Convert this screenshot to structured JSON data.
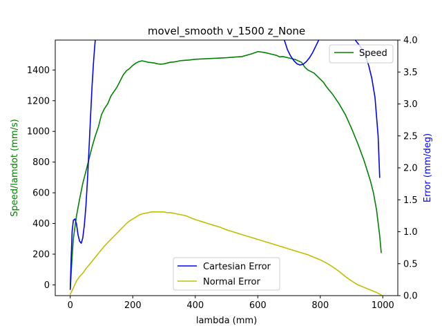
{
  "chart_data": {
    "type": "line",
    "title": "movel_smooth v_1500 z_None",
    "xlabel": "lambda (mm)",
    "ylabel_left": "Speed/lamdot (mm/s)",
    "ylabel_right": "Error (mm/deg)",
    "xlim": [
      -48,
      1048
    ],
    "ylim_left": [
      -70,
      1595
    ],
    "ylim_right": [
      0,
      4.0
    ],
    "x_ticks": [
      0,
      200,
      400,
      600,
      800,
      1000
    ],
    "y_left_ticks": [
      0,
      200,
      400,
      600,
      800,
      1000,
      1200,
      1400
    ],
    "y_right_ticks": [
      0.0,
      0.5,
      1.0,
      1.5,
      2.0,
      2.5,
      3.0,
      3.5,
      4.0
    ],
    "grid": false,
    "legends": [
      {
        "placement": "upper-right",
        "entries": [
          "Speed"
        ]
      },
      {
        "placement": "lower-center",
        "entries": [
          "Cartesian Error",
          "Normal Error"
        ]
      }
    ],
    "colors": {
      "speed": "#008000",
      "cartesian": "#0000ff",
      "normal": "#bfbf00",
      "left_axis_label": "#008000",
      "right_axis_label": "#0000ff"
    },
    "series": [
      {
        "name": "Speed",
        "axis": "left",
        "color": "#008000",
        "points": [
          [
            0,
            -30
          ],
          [
            5,
            150
          ],
          [
            10,
            300
          ],
          [
            20,
            450
          ],
          [
            30,
            560
          ],
          [
            40,
            660
          ],
          [
            50,
            740
          ],
          [
            60,
            820
          ],
          [
            70,
            900
          ],
          [
            80,
            970
          ],
          [
            90,
            1030
          ],
          [
            100,
            1110
          ],
          [
            110,
            1150
          ],
          [
            120,
            1180
          ],
          [
            130,
            1230
          ],
          [
            140,
            1260
          ],
          [
            150,
            1290
          ],
          [
            160,
            1330
          ],
          [
            170,
            1370
          ],
          [
            180,
            1395
          ],
          [
            190,
            1410
          ],
          [
            200,
            1430
          ],
          [
            210,
            1445
          ],
          [
            220,
            1455
          ],
          [
            230,
            1460
          ],
          [
            240,
            1455
          ],
          [
            250,
            1450
          ],
          [
            260,
            1448
          ],
          [
            270,
            1445
          ],
          [
            280,
            1440
          ],
          [
            290,
            1438
          ],
          [
            300,
            1440
          ],
          [
            310,
            1445
          ],
          [
            320,
            1450
          ],
          [
            330,
            1452
          ],
          [
            340,
            1455
          ],
          [
            350,
            1460
          ],
          [
            360,
            1462
          ],
          [
            380,
            1465
          ],
          [
            400,
            1470
          ],
          [
            450,
            1475
          ],
          [
            500,
            1480
          ],
          [
            550,
            1488
          ],
          [
            580,
            1505
          ],
          [
            600,
            1520
          ],
          [
            620,
            1515
          ],
          [
            640,
            1505
          ],
          [
            660,
            1495
          ],
          [
            670,
            1485
          ],
          [
            680,
            1488
          ],
          [
            700,
            1478
          ],
          [
            720,
            1468
          ],
          [
            740,
            1450
          ],
          [
            750,
            1420
          ],
          [
            760,
            1400
          ],
          [
            780,
            1380
          ],
          [
            800,
            1340
          ],
          [
            810,
            1320
          ],
          [
            820,
            1290
          ],
          [
            840,
            1240
          ],
          [
            860,
            1180
          ],
          [
            880,
            1110
          ],
          [
            900,
            1020
          ],
          [
            920,
            920
          ],
          [
            940,
            810
          ],
          [
            960,
            680
          ],
          [
            970,
            600
          ],
          [
            980,
            490
          ],
          [
            990,
            320
          ],
          [
            995,
            210
          ]
        ]
      },
      {
        "name": "Cartesian Error",
        "axis": "right",
        "color": "#0000ff",
        "points": [
          [
            0,
            0.1
          ],
          [
            3,
            0.6
          ],
          [
            6,
            1.0
          ],
          [
            10,
            1.18
          ],
          [
            15,
            1.2
          ],
          [
            20,
            1.12
          ],
          [
            25,
            0.95
          ],
          [
            30,
            0.85
          ],
          [
            35,
            0.82
          ],
          [
            40,
            0.9
          ],
          [
            45,
            1.1
          ],
          [
            50,
            1.4
          ],
          [
            55,
            1.8
          ],
          [
            60,
            2.3
          ],
          [
            65,
            2.8
          ],
          [
            70,
            3.3
          ],
          [
            75,
            3.7
          ],
          [
            80,
            4.0
          ],
          [
            83,
            4.3
          ],
          [
            680,
            4.3
          ],
          [
            685,
            4.0
          ],
          [
            695,
            3.85
          ],
          [
            705,
            3.75
          ],
          [
            715,
            3.68
          ],
          [
            725,
            3.63
          ],
          [
            735,
            3.61
          ],
          [
            745,
            3.62
          ],
          [
            755,
            3.66
          ],
          [
            765,
            3.72
          ],
          [
            775,
            3.8
          ],
          [
            785,
            3.9
          ],
          [
            795,
            4.0
          ],
          [
            800,
            4.2
          ],
          [
            900,
            4.2
          ],
          [
            905,
            4.05
          ],
          [
            915,
            3.98
          ],
          [
            925,
            3.92
          ],
          [
            935,
            3.85
          ],
          [
            945,
            3.75
          ],
          [
            955,
            3.6
          ],
          [
            965,
            3.4
          ],
          [
            975,
            3.1
          ],
          [
            985,
            2.5
          ],
          [
            990,
            1.85
          ]
        ]
      },
      {
        "name": "Normal Error",
        "axis": "right",
        "color": "#bfbf00",
        "points": [
          [
            0,
            0.02
          ],
          [
            10,
            0.12
          ],
          [
            20,
            0.23
          ],
          [
            30,
            0.3
          ],
          [
            40,
            0.35
          ],
          [
            50,
            0.42
          ],
          [
            60,
            0.48
          ],
          [
            70,
            0.54
          ],
          [
            80,
            0.6
          ],
          [
            90,
            0.66
          ],
          [
            100,
            0.72
          ],
          [
            110,
            0.78
          ],
          [
            120,
            0.83
          ],
          [
            130,
            0.88
          ],
          [
            140,
            0.93
          ],
          [
            150,
            0.98
          ],
          [
            160,
            1.03
          ],
          [
            170,
            1.08
          ],
          [
            180,
            1.13
          ],
          [
            190,
            1.17
          ],
          [
            200,
            1.2
          ],
          [
            210,
            1.23
          ],
          [
            220,
            1.26
          ],
          [
            230,
            1.28
          ],
          [
            240,
            1.29
          ],
          [
            250,
            1.3
          ],
          [
            260,
            1.31
          ],
          [
            270,
            1.31
          ],
          [
            280,
            1.31
          ],
          [
            290,
            1.31
          ],
          [
            300,
            1.31
          ],
          [
            310,
            1.3
          ],
          [
            320,
            1.3
          ],
          [
            330,
            1.29
          ],
          [
            340,
            1.28
          ],
          [
            350,
            1.27
          ],
          [
            360,
            1.26
          ],
          [
            370,
            1.25
          ],
          [
            380,
            1.23
          ],
          [
            390,
            1.21
          ],
          [
            400,
            1.19
          ],
          [
            420,
            1.16
          ],
          [
            440,
            1.13
          ],
          [
            460,
            1.1
          ],
          [
            480,
            1.07
          ],
          [
            500,
            1.03
          ],
          [
            520,
            1.0
          ],
          [
            540,
            0.97
          ],
          [
            560,
            0.94
          ],
          [
            580,
            0.91
          ],
          [
            600,
            0.88
          ],
          [
            620,
            0.85
          ],
          [
            640,
            0.82
          ],
          [
            660,
            0.79
          ],
          [
            680,
            0.76
          ],
          [
            700,
            0.73
          ],
          [
            720,
            0.7
          ],
          [
            740,
            0.67
          ],
          [
            760,
            0.64
          ],
          [
            780,
            0.6
          ],
          [
            800,
            0.56
          ],
          [
            820,
            0.51
          ],
          [
            840,
            0.45
          ],
          [
            860,
            0.38
          ],
          [
            880,
            0.3
          ],
          [
            900,
            0.23
          ],
          [
            920,
            0.17
          ],
          [
            940,
            0.13
          ],
          [
            960,
            0.09
          ],
          [
            980,
            0.05
          ],
          [
            995,
            0.01
          ]
        ]
      }
    ]
  }
}
